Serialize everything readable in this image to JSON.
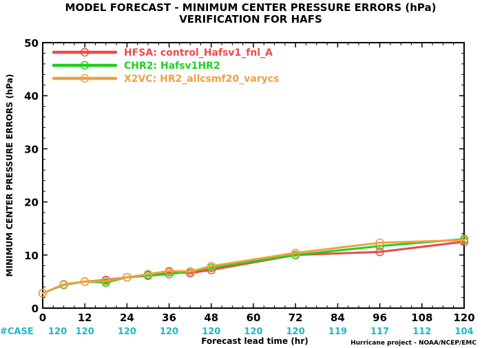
{
  "chart_data": {
    "type": "line",
    "title": "MODEL FORECAST - MINIMUM CENTER PRESSURE ERRORS (hPa)",
    "subtitle": "VERIFICATION FOR HAFS",
    "xlabel": "Forecast lead time (hr)",
    "ylabel": "MINIMUM CENTER PRESSURE ERRORS (hPa)",
    "xlim": [
      0,
      120
    ],
    "ylim": [
      0,
      50
    ],
    "x_ticks": [
      0,
      12,
      24,
      36,
      48,
      60,
      72,
      84,
      96,
      108,
      120
    ],
    "y_ticks": [
      0,
      10,
      20,
      30,
      40,
      50
    ],
    "grid": false,
    "legend_position": "top-left",
    "case_label": "#CASE",
    "case_counts": [
      {
        "x": 0,
        "n": "120"
      },
      {
        "x": 12,
        "n": "120"
      },
      {
        "x": 24,
        "n": "120"
      },
      {
        "x": 36,
        "n": "120"
      },
      {
        "x": 48,
        "n": "120"
      },
      {
        "x": 60,
        "n": "120"
      },
      {
        "x": 72,
        "n": "120"
      },
      {
        "x": 84,
        "n": "119"
      },
      {
        "x": 96,
        "n": "117"
      },
      {
        "x": 108,
        "n": "112"
      },
      {
        "x": 120,
        "n": "104"
      }
    ],
    "credit": "Hurricane project - NOAA/NCEP/EMC",
    "series": [
      {
        "name": "HFSA: control_Hafsv1_fnl_A",
        "color": "#f04848",
        "x": [
          0,
          6,
          12,
          18,
          24,
          30,
          36,
          42,
          48,
          72,
          96,
          120
        ],
        "y": [
          2.8,
          4.4,
          5.0,
          5.3,
          5.8,
          6.2,
          6.8,
          6.6,
          7.2,
          10.0,
          10.6,
          12.5
        ]
      },
      {
        "name": "CHR2: Hafsv1HR2",
        "color": "#20d020",
        "x": [
          0,
          6,
          12,
          18,
          24,
          30,
          36,
          42,
          48,
          72,
          96,
          120
        ],
        "y": [
          2.8,
          4.4,
          5.0,
          4.8,
          5.8,
          6.1,
          6.4,
          6.9,
          7.6,
          10.0,
          11.7,
          13.0
        ]
      },
      {
        "name": "X2VC: HR2_allcsmf20_varycs",
        "color": "#f0a040",
        "x": [
          0,
          6,
          12,
          18,
          24,
          30,
          36,
          42,
          48,
          72,
          96,
          120
        ],
        "y": [
          2.8,
          4.5,
          5.0,
          5.1,
          5.8,
          6.4,
          7.0,
          6.9,
          7.9,
          10.4,
          12.3,
          12.8
        ]
      }
    ]
  }
}
